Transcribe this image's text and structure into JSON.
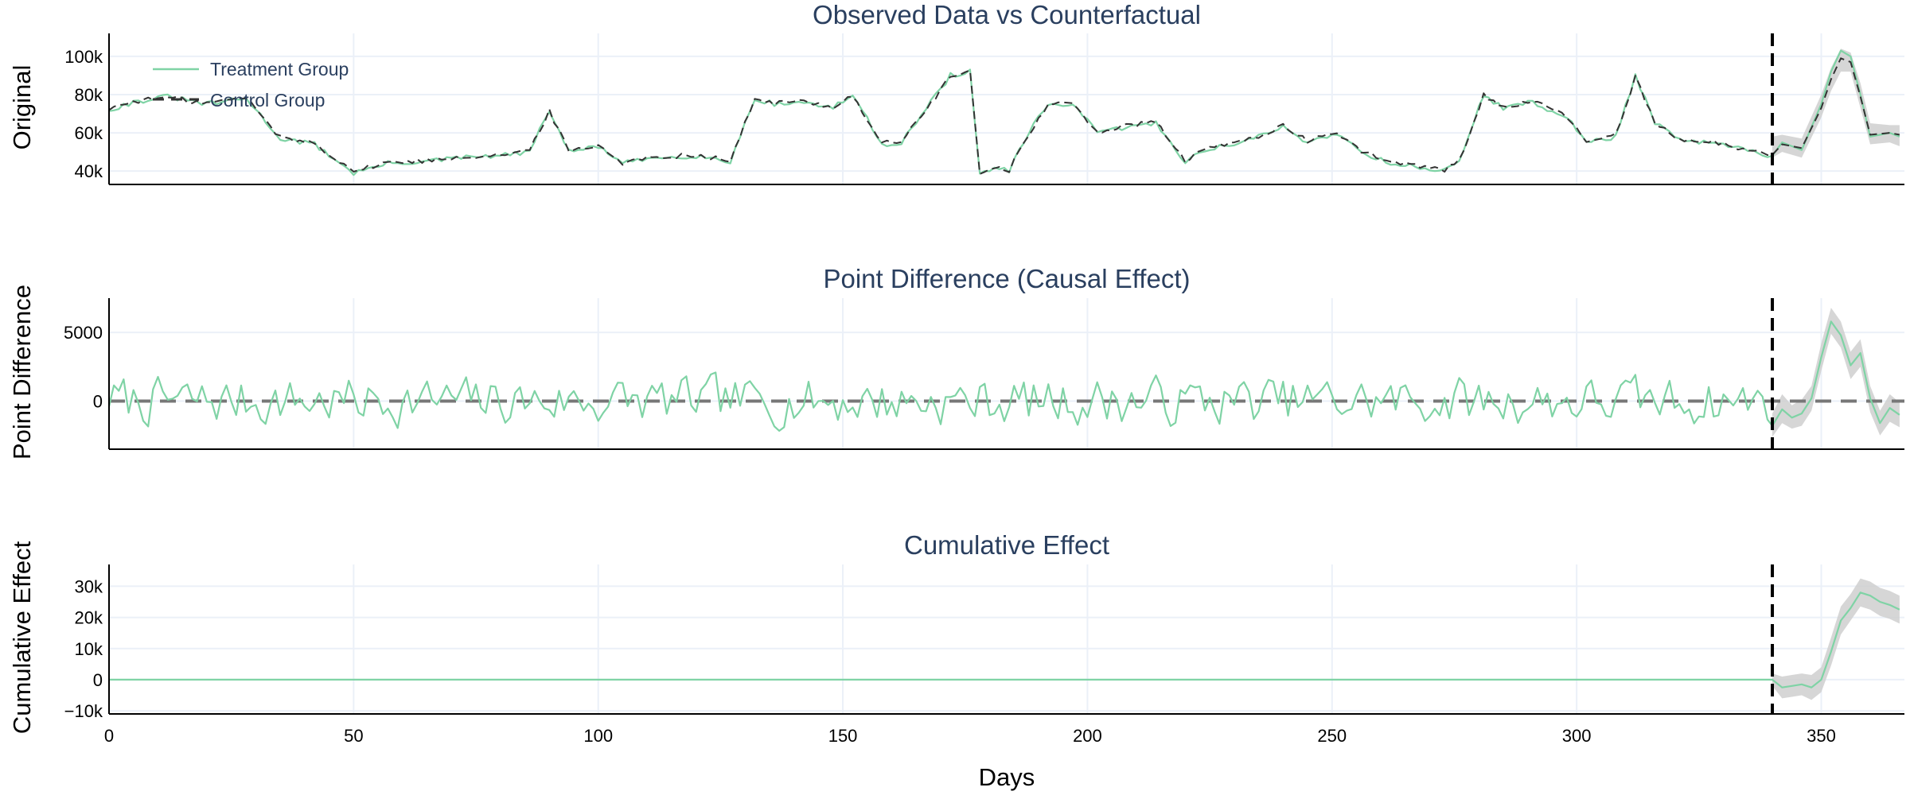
{
  "chart_data": [
    {
      "type": "line",
      "panel": "top",
      "title": "Observed Data vs Counterfactual",
      "ylabel": "Original",
      "xlabel": "",
      "ylim": [
        33000,
        112000
      ],
      "xlim": [
        0,
        367
      ],
      "intervention_day": 340,
      "grid": true,
      "legend_position": "top-left",
      "x_ticks": [
        0,
        50,
        100,
        150,
        200,
        250,
        300,
        350
      ],
      "y_ticks": [
        {
          "value": 40000,
          "label": "40k"
        },
        {
          "value": 60000,
          "label": "60k"
        },
        {
          "value": 80000,
          "label": "80k"
        },
        {
          "value": 100000,
          "label": "100k"
        }
      ],
      "x_anchors": [
        0,
        5,
        12,
        20,
        28,
        35,
        42,
        50,
        57,
        65,
        72,
        80,
        86,
        90,
        94,
        100,
        105,
        112,
        120,
        127,
        132,
        136,
        142,
        148,
        152,
        158,
        162,
        168,
        172,
        176,
        178,
        181,
        184,
        188,
        192,
        197,
        202,
        208,
        214,
        220,
        225,
        228,
        234,
        240,
        245,
        251,
        256,
        262,
        268,
        273,
        276,
        281,
        285,
        291,
        298,
        302,
        308,
        312,
        316,
        322,
        328,
        334,
        340,
        342,
        346,
        350,
        352,
        354,
        356,
        358,
        360,
        364,
        366
      ],
      "series": [
        {
          "name": "Treatment Group",
          "color": "#7fd3a5",
          "style": "solid",
          "anchors": [
            72000,
            76000,
            79000,
            75000,
            78000,
            57000,
            54000,
            39000,
            44000,
            45000,
            47000,
            48000,
            50000,
            72000,
            50000,
            53000,
            44000,
            47000,
            48000,
            45000,
            78000,
            75000,
            76000,
            73000,
            80000,
            54000,
            55000,
            76000,
            90000,
            92000,
            38000,
            42000,
            40000,
            60000,
            75000,
            75000,
            60000,
            63000,
            65000,
            45000,
            52000,
            53000,
            57000,
            63000,
            55000,
            60000,
            50000,
            44000,
            42000,
            40000,
            45000,
            80000,
            73000,
            76000,
            68000,
            55000,
            58000,
            90000,
            65000,
            55000,
            55000,
            51000,
            48000,
            55000,
            51000,
            75000,
            92000,
            103000,
            100000,
            80000,
            58000,
            60000,
            58000
          ]
        },
        {
          "name": "Control Group",
          "color": "#333333",
          "style": "dashed",
          "anchors": [
            72500,
            76500,
            78500,
            75500,
            78500,
            57500,
            54500,
            40000,
            44500,
            45500,
            47500,
            48500,
            50500,
            71500,
            50500,
            53500,
            44500,
            47500,
            48500,
            45500,
            77500,
            75500,
            76500,
            73500,
            79500,
            54500,
            55500,
            75500,
            89500,
            91500,
            39000,
            42500,
            40500,
            59500,
            74500,
            75500,
            60500,
            63500,
            65500,
            45500,
            52500,
            53500,
            57500,
            63500,
            55500,
            60500,
            50500,
            44500,
            42500,
            40500,
            45500,
            79500,
            73500,
            76500,
            68500,
            55500,
            58500,
            89500,
            65500,
            55500,
            55500,
            51500,
            48500,
            54000,
            52000,
            73000,
            88000,
            99000,
            97000,
            79000,
            59000,
            60000,
            59000
          ]
        }
      ],
      "band": {
        "color": "#cfcfcf",
        "x": [
          340,
          342,
          346,
          350,
          352,
          354,
          356,
          358,
          360,
          364,
          366
        ],
        "lower": [
          47000,
          50000,
          47000,
          68000,
          82000,
          92000,
          92000,
          73000,
          54000,
          55000,
          53000
        ],
        "upper": [
          58000,
          59000,
          57000,
          80000,
          94000,
          104000,
          102000,
          86000,
          65000,
          64000,
          64000
        ]
      }
    },
    {
      "type": "line",
      "panel": "middle",
      "title": "Point Difference (Causal Effect)",
      "ylabel": "Point Difference",
      "xlabel": "",
      "ylim": [
        -3500,
        7500
      ],
      "xlim": [
        0,
        367
      ],
      "intervention_day": 340,
      "grid": true,
      "x_ticks": [
        0,
        50,
        100,
        150,
        200,
        250,
        300,
        350
      ],
      "y_ticks": [
        {
          "value": 0,
          "label": "0"
        },
        {
          "value": 5000,
          "label": "5000"
        }
      ],
      "zero_line": {
        "color": "#777777",
        "style": "dashed"
      },
      "series": [
        {
          "name": "Point Difference",
          "color": "#7fd3a5",
          "style": "solid",
          "seed": 7,
          "amplitude": 1350,
          "post_x": [
            340,
            342,
            344,
            346,
            348,
            350,
            352,
            353,
            354,
            356,
            358,
            360,
            362,
            364,
            366
          ],
          "post_y": [
            -1800,
            -600,
            -1200,
            -900,
            200,
            3200,
            5800,
            5300,
            4800,
            2600,
            3500,
            200,
            -1600,
            -500,
            -1000
          ]
        }
      ],
      "band": {
        "color": "#cfcfcf",
        "x": [
          340,
          342,
          344,
          346,
          348,
          350,
          352,
          354,
          356,
          358,
          360,
          362,
          364,
          366
        ],
        "lower": [
          -2600,
          -1600,
          -2000,
          -1800,
          -700,
          2200,
          4900,
          3900,
          1600,
          2500,
          -800,
          -2500,
          -1500,
          -1900
        ],
        "upper": [
          -900,
          500,
          -300,
          100,
          1100,
          4200,
          6800,
          5800,
          3600,
          4500,
          1100,
          -700,
          500,
          -100
        ]
      }
    },
    {
      "type": "line",
      "panel": "bottom",
      "title": "Cumulative Effect",
      "ylabel": "Cumulative Effect",
      "xlabel": "Days",
      "ylim": [
        -11000,
        37000
      ],
      "xlim": [
        0,
        367
      ],
      "intervention_day": 340,
      "grid": true,
      "x_ticks": [
        0,
        50,
        100,
        150,
        200,
        250,
        300,
        350
      ],
      "x_tick_labels": [
        "0",
        "50",
        "100",
        "150",
        "200",
        "250",
        "300",
        "350"
      ],
      "y_ticks": [
        {
          "value": -10000,
          "label": "−10k"
        },
        {
          "value": 0,
          "label": "0"
        },
        {
          "value": 10000,
          "label": "10k"
        },
        {
          "value": 20000,
          "label": "20k"
        },
        {
          "value": 30000,
          "label": "30k"
        }
      ],
      "series": [
        {
          "name": "Cumulative Effect",
          "color": "#7fd3a5",
          "style": "solid",
          "x": [
            0,
            340,
            342,
            344,
            346,
            348,
            350,
            352,
            354,
            356,
            358,
            360,
            362,
            364,
            366
          ],
          "y": [
            0,
            0,
            -2500,
            -2000,
            -1500,
            -2500,
            0,
            9000,
            19000,
            23000,
            28000,
            27000,
            25000,
            24000,
            22500
          ]
        }
      ],
      "band": {
        "color": "#cfcfcf",
        "x": [
          340,
          342,
          344,
          346,
          348,
          350,
          352,
          354,
          356,
          358,
          360,
          362,
          364,
          366
        ],
        "lower": [
          -2000,
          -6000,
          -5500,
          -5000,
          -6500,
          -4000,
          4500,
          14500,
          19000,
          23500,
          22500,
          20500,
          19500,
          18000
        ],
        "upper": [
          2000,
          1000,
          1500,
          2000,
          1500,
          4000,
          13500,
          23500,
          27500,
          32500,
          31500,
          29500,
          28500,
          27000
        ]
      }
    }
  ]
}
